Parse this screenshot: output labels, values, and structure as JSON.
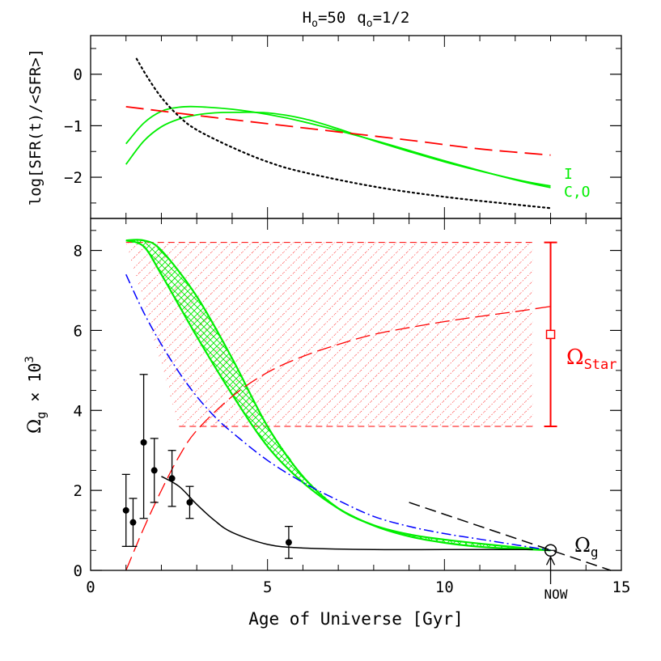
{
  "chart_data": {
    "type": "line",
    "title": {
      "h": "H",
      "h_sub": "o",
      "h_val": "=50",
      "q": "q",
      "q_sub": "o",
      "q_val": "=1/2"
    },
    "xlabel": "Age of Universe [Gyr]",
    "xlim": [
      0,
      15
    ],
    "x_ticks": [
      0,
      5,
      10,
      15
    ],
    "x_tick_labels": [
      "0",
      "5",
      "10",
      "15"
    ],
    "top_panel": {
      "ylabel": "log[SFR(t)/<SFR>]",
      "ylim": [
        -2.8,
        0.75
      ],
      "y_ticks": [
        0,
        -1,
        -2
      ],
      "y_tick_labels": [
        "0",
        "−1",
        "−2"
      ],
      "series": [
        {
          "name": "I",
          "color": "#00ee00",
          "style": "solid",
          "x": [
            1.0,
            1.5,
            2.0,
            2.5,
            3.0,
            4.0,
            5.0,
            6.0,
            8.0,
            10.0,
            12.0,
            13.0
          ],
          "y": [
            -1.35,
            -0.95,
            -0.72,
            -0.64,
            -0.63,
            -0.68,
            -0.78,
            -0.92,
            -1.28,
            -1.68,
            -2.05,
            -2.2
          ]
        },
        {
          "name": "C,O",
          "color": "#00ee00",
          "style": "solid",
          "x": [
            1.0,
            1.5,
            2.0,
            2.5,
            3.0,
            3.5,
            4.0,
            5.0,
            6.0,
            7.0,
            8.0,
            10.0,
            12.0,
            13.0
          ],
          "y": [
            -1.75,
            -1.3,
            -1.02,
            -0.87,
            -0.79,
            -0.75,
            -0.74,
            -0.75,
            -0.86,
            -1.06,
            -1.29,
            -1.7,
            -2.04,
            -2.17
          ]
        },
        {
          "name": "",
          "color": "#ff0000",
          "style": "long-dash",
          "x": [
            1.0,
            3.0,
            5.0,
            7.0,
            9.0,
            11.0,
            13.0
          ],
          "y": [
            -0.63,
            -0.8,
            -0.96,
            -1.12,
            -1.28,
            -1.45,
            -1.57
          ]
        },
        {
          "name": "",
          "color": "#000000",
          "style": "dotted",
          "x": [
            1.3,
            1.6,
            2.0,
            2.5,
            3.0,
            4.0,
            5.0,
            6.0,
            8.0,
            10.0,
            12.0,
            13.0
          ],
          "y": [
            0.3,
            -0.05,
            -0.45,
            -0.82,
            -1.08,
            -1.42,
            -1.7,
            -1.9,
            -2.18,
            -2.38,
            -2.53,
            -2.6
          ]
        }
      ],
      "labels": [
        {
          "text": "I",
          "color": "#00ee00"
        },
        {
          "text": "C,O",
          "color": "#00ee00"
        }
      ]
    },
    "bottom_panel": {
      "ylabel_main": "Ω",
      "ylabel_sub": "g",
      "ylabel_rest": " × 10",
      "ylabel_sup": "3",
      "ylim": [
        0,
        8.8
      ],
      "y_ticks": [
        0,
        2,
        4,
        6,
        8
      ],
      "y_tick_labels": [
        "0",
        "2",
        "4",
        "6",
        "8"
      ],
      "green_band": {
        "color": "#00ee00",
        "upper": {
          "x": [
            1.0,
            1.5,
            2.0,
            3.0,
            4.0,
            5.0,
            6.0,
            7.0,
            8.0,
            9.0,
            10.0,
            11.0,
            12.0,
            13.0
          ],
          "y": [
            8.25,
            8.25,
            8.0,
            6.85,
            5.3,
            3.6,
            2.35,
            1.55,
            1.13,
            0.9,
            0.77,
            0.67,
            0.58,
            0.5
          ]
        },
        "lower": {
          "x": [
            1.0,
            1.5,
            2.0,
            3.0,
            4.0,
            5.0,
            6.0,
            7.0,
            8.0,
            9.0,
            10.0,
            11.0,
            12.0,
            13.0
          ],
          "y": [
            8.25,
            8.1,
            7.4,
            5.85,
            4.4,
            3.1,
            2.2,
            1.55,
            1.12,
            0.85,
            0.69,
            0.59,
            0.54,
            0.5
          ]
        }
      },
      "red_band": {
        "color": "#ff0000",
        "x": [
          1.0,
          12.5
        ],
        "y_top": 8.2,
        "y_bottom": 3.6,
        "x_left_bottom": 2.5
      },
      "red_dashed_curve": {
        "color": "#ff0000",
        "x": [
          1.0,
          1.5,
          2.0,
          2.5,
          3.0,
          4.0,
          5.0,
          6.0,
          7.0,
          8.0,
          9.0,
          10.0,
          11.0,
          12.0,
          13.0
        ],
        "y": [
          0.0,
          1.05,
          2.0,
          2.85,
          3.5,
          4.35,
          4.95,
          5.35,
          5.65,
          5.9,
          6.07,
          6.22,
          6.35,
          6.47,
          6.6
        ]
      },
      "blue_dashdot_curve": {
        "color": "#0000ff",
        "x": [
          1.0,
          1.5,
          2.0,
          2.5,
          3.0,
          3.5,
          4.0,
          5.0,
          6.0,
          7.0,
          8.0,
          9.0,
          10.0,
          11.0,
          12.0,
          13.0
        ],
        "y": [
          7.4,
          6.45,
          5.65,
          4.95,
          4.35,
          3.85,
          3.45,
          2.75,
          2.2,
          1.75,
          1.35,
          1.1,
          0.92,
          0.78,
          0.64,
          0.5
        ]
      },
      "black_solid_curve": {
        "color": "#000000",
        "x": [
          2.0,
          2.5,
          3.0,
          3.5,
          4.0,
          5.0,
          6.0,
          8.0,
          10.0,
          12.0,
          12.5
        ],
        "y": [
          2.35,
          2.1,
          1.65,
          1.25,
          0.95,
          0.65,
          0.56,
          0.52,
          0.52,
          0.52,
          0.52
        ]
      },
      "black_dashed_line": {
        "color": "#000000",
        "x": [
          9.0,
          14.7
        ],
        "y": [
          1.7,
          0.0
        ]
      },
      "data_points": [
        {
          "x": 1.0,
          "y": 1.5,
          "err_low": 0.9,
          "err_high": 0.9
        },
        {
          "x": 1.2,
          "y": 1.2,
          "err_low": 0.6,
          "err_high": 0.6
        },
        {
          "x": 1.5,
          "y": 3.2,
          "err_low": 1.9,
          "err_high": 1.7
        },
        {
          "x": 1.8,
          "y": 2.5,
          "err_low": 0.8,
          "err_high": 0.8
        },
        {
          "x": 2.3,
          "y": 2.3,
          "err_low": 0.7,
          "err_high": 0.7
        },
        {
          "x": 2.8,
          "y": 1.7,
          "err_low": 0.4,
          "err_high": 0.4
        },
        {
          "x": 5.6,
          "y": 0.7,
          "err_low": 0.4,
          "err_high": 0.4
        }
      ],
      "omega_star_bar": {
        "x": 13.0,
        "y_low": 3.6,
        "y_high": 8.2,
        "y_mid": 5.9,
        "color": "#ff0000"
      },
      "now_point": {
        "x": 13.0,
        "y": 0.5
      },
      "labels": {
        "omega_star": "Ω",
        "omega_star_sub": "Star",
        "omega_g": "Ω",
        "omega_g_sub": "g",
        "now": "NOW"
      }
    }
  }
}
